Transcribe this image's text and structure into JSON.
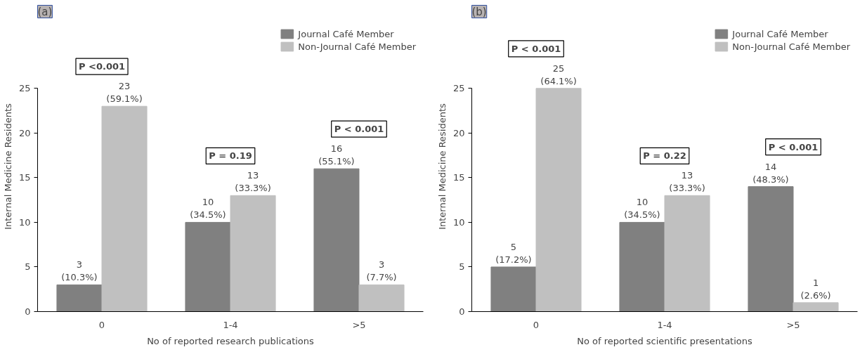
{
  "chart_data": [
    {
      "type": "bar",
      "title": "(a)",
      "xlabel": "No of reported research publications",
      "ylabel": "Internal Medicine Residents",
      "categories": [
        "0",
        "1-4",
        ">5"
      ],
      "series": [
        {
          "name": "Journal Café Member",
          "color": "#808080",
          "values": [
            3,
            10,
            16
          ],
          "value_labels": [
            "3\n(10.3%)",
            "10\n(34.5%)",
            "16\n(55.1%)"
          ]
        },
        {
          "name": "Non-Journal Café Member",
          "color": "#c0c0c0",
          "values": [
            23,
            13,
            3
          ],
          "value_labels": [
            "23\n(59.1%)",
            "13\n(33.3%)",
            "3\n(7.7%)"
          ]
        }
      ],
      "ylim": [
        0,
        25
      ],
      "yticks": [
        0,
        5,
        10,
        15,
        20,
        25
      ],
      "grid": false,
      "legend": "top right",
      "annotations": [
        "P <0.001",
        "P = 0.19",
        "P < 0.001"
      ]
    },
    {
      "type": "bar",
      "title": "(b)",
      "xlabel": "No of reported scientific presentations",
      "ylabel": "Internal Medicine Residents",
      "categories": [
        "0",
        "1-4",
        ">5"
      ],
      "series": [
        {
          "name": "Journal Café Member",
          "color": "#808080",
          "values": [
            5,
            10,
            14
          ],
          "value_labels": [
            "5\n(17.2%)",
            "10\n(34.5%)",
            "14\n(48.3%)"
          ]
        },
        {
          "name": "Non-Journal Café Member",
          "color": "#c0c0c0",
          "values": [
            25,
            13,
            1
          ],
          "value_labels": [
            "25\n(64.1%)",
            "13\n(33.3%)",
            "1\n(2.6%)"
          ]
        }
      ],
      "ylim": [
        0,
        25
      ],
      "yticks": [
        0,
        5,
        10,
        15,
        20,
        25
      ],
      "grid": false,
      "legend": "top right",
      "annotations": [
        "P < 0.001",
        "P = 0.22",
        "P < 0.001"
      ]
    }
  ]
}
